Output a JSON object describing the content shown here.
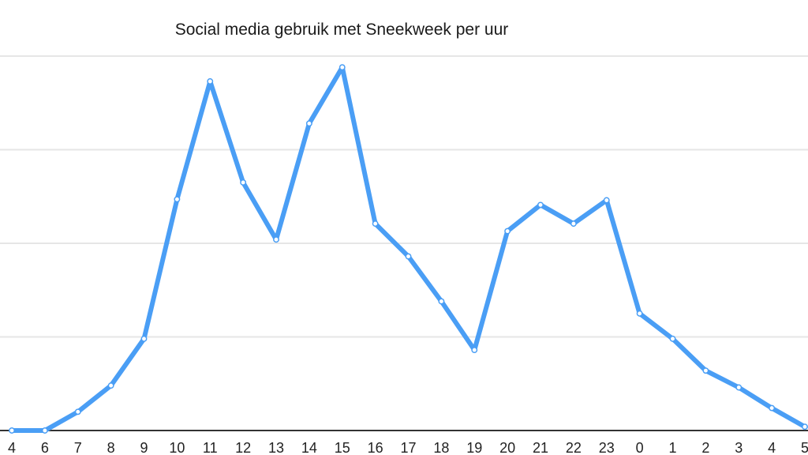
{
  "chart_data": {
    "type": "line",
    "title": "Social media gebruik met Sneekweek per uur",
    "xlabel": "",
    "ylabel": "",
    "categories": [
      "4",
      "6",
      "7",
      "8",
      "9",
      "10",
      "11",
      "12",
      "13",
      "14",
      "15",
      "16",
      "17",
      "18",
      "19",
      "20",
      "21",
      "22",
      "23",
      "0",
      "1",
      "2",
      "3",
      "4",
      "5"
    ],
    "series": [
      {
        "values": [
          0,
          0,
          0.2,
          0.48,
          0.98,
          2.47,
          3.73,
          2.65,
          2.04,
          3.28,
          3.88,
          2.21,
          1.86,
          1.38,
          0.86,
          2.13,
          2.41,
          2.21,
          2.46,
          1.25,
          0.98,
          0.64,
          0.46,
          0.24,
          0.04
        ]
      }
    ],
    "ylim": [
      0,
      4
    ],
    "grid": true,
    "colors": {
      "line": "#4a9ef5",
      "grid": "#e6e6e6",
      "axis": "#333333"
    }
  }
}
